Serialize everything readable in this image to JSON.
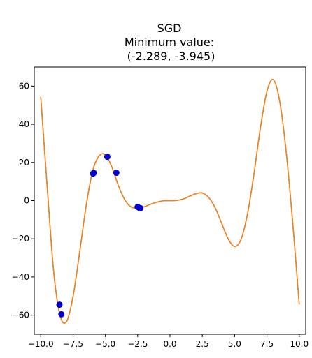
{
  "chart_data": {
    "type": "line",
    "title_lines": [
      "SGD",
      "Minimum value:",
      " (-2.289, -3.945)"
    ],
    "xlabel": "",
    "ylabel": "",
    "xlim": [
      -10.5,
      10.5
    ],
    "ylim": [
      -70,
      70
    ],
    "x_ticks": [
      -10.0,
      -7.5,
      -5.0,
      -2.5,
      0.0,
      2.5,
      5.0,
      7.5,
      10.0
    ],
    "x_tick_labels": [
      "−10.0",
      "−7.5",
      "−5.0",
      "−2.5",
      "0.0",
      "2.5",
      "5.0",
      "7.5",
      "10.0"
    ],
    "y_ticks": [
      -60,
      -40,
      -20,
      0,
      20,
      40,
      60
    ],
    "y_tick_labels": [
      "−60",
      "−40",
      "−20",
      "0",
      "20",
      "40",
      "60"
    ],
    "grid": false,
    "curve": {
      "color": "#ff7f0e",
      "x": [
        -10.0,
        -9.5,
        -9.0,
        -8.5,
        -8.0,
        -7.5,
        -7.0,
        -6.5,
        -6.0,
        -5.5,
        -5.0,
        -4.5,
        -4.0,
        -3.5,
        -3.0,
        -2.5,
        -2.0,
        -1.5,
        -1.0,
        -0.5,
        0.0,
        0.5,
        1.0,
        1.5,
        2.0,
        2.5,
        3.0,
        3.5,
        4.0,
        4.5,
        5.0,
        5.5,
        6.0,
        6.5,
        7.0,
        7.5,
        8.0,
        8.5,
        9.0,
        9.5,
        10.0
      ],
      "y": [
        54.4,
        7.1,
        -37.1,
        -60.2,
        -63.3,
        -50.2,
        -27.6,
        -3.3,
        15.1,
        23.3,
        24.0,
        17.6,
        8.0,
        0.5,
        -3.4,
        -3.8,
        -3.2,
        -1.9,
        -0.8,
        -0.1,
        0.0,
        0.1,
        0.8,
        2.2,
        3.6,
        4.0,
        1.6,
        -3.8,
        -11.9,
        -20.0,
        -24.0,
        -20.2,
        -6.8,
        14.1,
        38.3,
        57.2,
        63.3,
        51.6,
        24.8,
        -12.0,
        -54.4
      ]
    },
    "points": {
      "color": "#0000cd",
      "x": [
        -8.55,
        -8.4,
        -5.95,
        -5.9,
        -4.85,
        -4.15,
        -2.5,
        -2.35,
        -2.289
      ],
      "y": [
        -54.5,
        -59.5,
        14.2,
        14.5,
        23.0,
        14.6,
        -3.3,
        -3.9,
        -3.945
      ]
    }
  }
}
